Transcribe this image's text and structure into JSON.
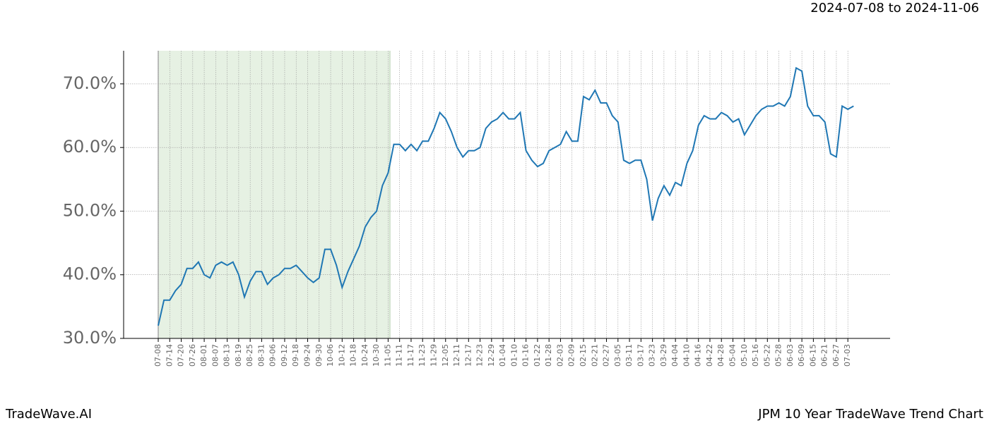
{
  "chart_data": {
    "type": "line",
    "date_range": "2024-07-08 to 2024-11-06",
    "brand": "TradeWave.AI",
    "title": "JPM 10 Year TradeWave Trend Chart",
    "color": "#1f77b4",
    "grid": true,
    "ylim": [
      30,
      75.2
    ],
    "yticks": [
      {
        "value": 30,
        "label": "30.0%"
      },
      {
        "value": 40,
        "label": "40.0%"
      },
      {
        "value": 50,
        "label": "50.0%"
      },
      {
        "value": 60,
        "label": "60.0%"
      },
      {
        "value": 70,
        "label": "70.0%"
      }
    ],
    "categories": [
      "07-08",
      null,
      "07-14",
      null,
      "07-20",
      null,
      "07-26",
      null,
      "08-01",
      null,
      "08-07",
      null,
      "08-13",
      null,
      "08-19",
      null,
      "08-25",
      null,
      "08-31",
      null,
      "09-06",
      null,
      "09-12",
      null,
      "09-18",
      null,
      "09-24",
      null,
      "09-30",
      null,
      "10-06",
      null,
      "10-12",
      null,
      "10-18",
      null,
      "10-24",
      null,
      "10-30",
      null,
      "11-05",
      null,
      "11-11",
      null,
      "11-17",
      null,
      "11-23",
      null,
      "11-29",
      null,
      "12-05",
      null,
      "12-11",
      null,
      "12-17",
      null,
      "12-23",
      null,
      "12-29",
      null,
      "01-04",
      null,
      "01-10",
      null,
      "01-16",
      null,
      "01-22",
      null,
      "01-28",
      null,
      "02-03",
      null,
      "02-09",
      null,
      "02-15",
      null,
      "02-21",
      null,
      "02-27",
      null,
      "03-05",
      null,
      "03-11",
      null,
      "03-17",
      null,
      "03-23",
      null,
      "03-29",
      null,
      "04-04",
      null,
      "04-10",
      null,
      "04-16",
      null,
      "04-22",
      null,
      "04-28",
      null,
      "05-04",
      null,
      "05-10",
      null,
      "05-16",
      null,
      "05-22",
      null,
      "05-28",
      null,
      "06-03",
      null,
      "06-09",
      null,
      "06-15",
      null,
      "06-21",
      null,
      "06-27",
      null,
      "07-03",
      null
    ],
    "values": [
      32,
      36,
      36,
      37.5,
      38.5,
      41,
      41,
      42,
      40,
      39.5,
      41.5,
      42,
      41.5,
      42,
      40,
      36.5,
      39,
      40.5,
      40.5,
      38.5,
      39.5,
      40,
      41,
      41,
      41.5,
      40.5,
      39.5,
      38.8,
      39.5,
      44,
      44,
      41.5,
      38,
      40.5,
      42.5,
      44.5,
      47.5,
      49,
      50,
      54,
      56,
      60.5,
      60.5,
      59.5,
      60.5,
      59.5,
      61,
      61,
      63,
      65.5,
      64.5,
      62.5,
      60,
      58.5,
      59.5,
      59.5,
      60,
      63,
      64,
      64.5,
      65.5,
      64.5,
      64.5,
      65.5,
      59.5,
      58,
      57,
      57.5,
      59.5,
      60,
      60.5,
      62.5,
      61,
      61,
      68,
      67.5,
      69,
      67,
      67,
      65,
      64,
      58,
      57.5,
      58,
      58,
      55,
      48.5,
      52,
      54,
      52.5,
      54.5,
      54,
      57.5,
      59.5,
      63.5,
      65,
      64.5,
      64.5,
      65.5,
      65,
      64,
      64.5,
      62,
      63.5,
      65,
      66,
      66.5,
      66.5,
      67,
      66.5,
      68,
      72.5,
      72,
      66.5,
      65,
      65,
      64,
      59,
      58.5,
      66.5,
      66,
      66.5
    ]
  }
}
